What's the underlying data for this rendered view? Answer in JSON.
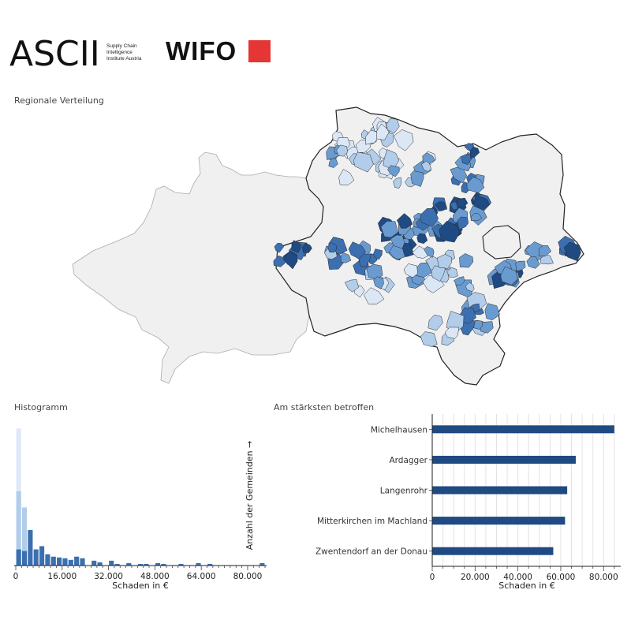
{
  "header": {
    "ascii_logo_text": "ASCII",
    "ascii_subtitle": [
      "Supply Chain",
      "Intelligence",
      "Institute Austria"
    ],
    "wifo_logo_text": "WIFO",
    "wifo_square_color": "#e53535"
  },
  "map": {
    "title": "Regionale Verteilung",
    "colors": {
      "background_region": "#f0f0f0",
      "border": "#222222",
      "level_1": "#dbe7f5",
      "level_2": "#b2cdea",
      "level_3": "#6a9bd0",
      "level_4": "#3b6fb0",
      "level_5": "#1f4a82"
    }
  },
  "histogram": {
    "title": "Histogramm",
    "chart_data": {
      "type": "bar",
      "xlabel": "Schaden in €",
      "ylabel": "Anzahl der Gemeinden →",
      "xlim": [
        0,
        86000
      ],
      "xticks": [
        0,
        16000,
        32000,
        48000,
        64000,
        80000
      ],
      "xtick_labels": [
        "0",
        "16.000",
        "32.000",
        "48.000",
        "64.000",
        "80.000"
      ],
      "bin_width": 2000,
      "bins": [
        {
          "x": 0,
          "count": 170,
          "layer": "light"
        },
        {
          "x": 0,
          "count": 92,
          "layer": "mid"
        },
        {
          "x": 0,
          "count": 20,
          "layer": "dark"
        },
        {
          "x": 2000,
          "count": 72,
          "layer": "mid"
        },
        {
          "x": 2000,
          "count": 18,
          "layer": "dark"
        },
        {
          "x": 4000,
          "count": 44,
          "layer": "dark"
        },
        {
          "x": 6000,
          "count": 20,
          "layer": "dark"
        },
        {
          "x": 8000,
          "count": 24,
          "layer": "dark"
        },
        {
          "x": 10000,
          "count": 14,
          "layer": "dark"
        },
        {
          "x": 12000,
          "count": 11,
          "layer": "dark"
        },
        {
          "x": 14000,
          "count": 10,
          "layer": "dark"
        },
        {
          "x": 16000,
          "count": 9,
          "layer": "dark"
        },
        {
          "x": 18000,
          "count": 7,
          "layer": "dark"
        },
        {
          "x": 20000,
          "count": 11,
          "layer": "dark"
        },
        {
          "x": 22000,
          "count": 9,
          "layer": "dark"
        },
        {
          "x": 26000,
          "count": 6,
          "layer": "dark"
        },
        {
          "x": 28000,
          "count": 4,
          "layer": "dark"
        },
        {
          "x": 32000,
          "count": 6,
          "layer": "dark"
        },
        {
          "x": 34000,
          "count": 2,
          "layer": "dark"
        },
        {
          "x": 38000,
          "count": 3,
          "layer": "dark"
        },
        {
          "x": 42000,
          "count": 2,
          "layer": "dark"
        },
        {
          "x": 44000,
          "count": 2,
          "layer": "dark"
        },
        {
          "x": 48000,
          "count": 3,
          "layer": "dark"
        },
        {
          "x": 50000,
          "count": 2,
          "layer": "dark"
        },
        {
          "x": 56000,
          "count": 2,
          "layer": "dark"
        },
        {
          "x": 62000,
          "count": 3,
          "layer": "dark"
        },
        {
          "x": 66000,
          "count": 2,
          "layer": "dark"
        },
        {
          "x": 84000,
          "count": 3,
          "layer": "dark"
        }
      ],
      "ylim": [
        0,
        175
      ],
      "layer_colors": {
        "light": "#dbe7f5",
        "mid": "#b2cdea",
        "dark": "#3b6fb0"
      }
    }
  },
  "top_affected": {
    "title": "Am stärksten betroffen",
    "chart_data": {
      "type": "bar",
      "orientation": "horizontal",
      "categories": [
        "Michelhausen",
        "Ardagger",
        "Langenrohr",
        "Mitterkirchen im Machland",
        "Zwentendorf an der Donau"
      ],
      "values": [
        85000,
        67000,
        63000,
        62000,
        56500
      ],
      "xlabel": "Schaden in €",
      "xlim": [
        0,
        88000
      ],
      "xticks": [
        0,
        20000,
        40000,
        60000,
        80000
      ],
      "xtick_labels": [
        "0",
        "20.000",
        "40.000",
        "60.000",
        "80.000"
      ],
      "bar_color": "#1f4a82",
      "grid": true
    }
  }
}
